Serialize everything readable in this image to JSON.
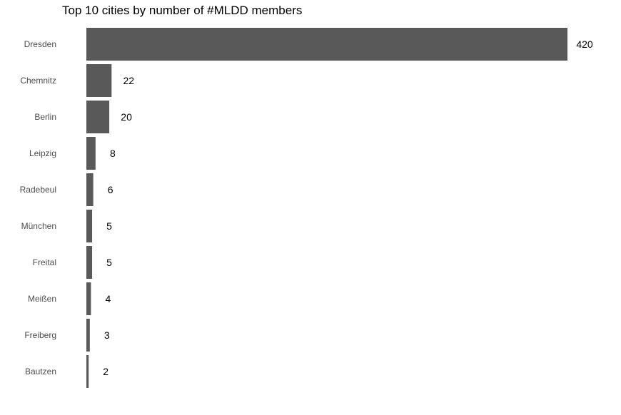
{
  "chart_data": {
    "type": "bar",
    "orientation": "horizontal",
    "title": "Top 10 cities by number of #MLDD members",
    "xlabel": "",
    "ylabel": "",
    "categories": [
      "Dresden",
      "Chemnitz",
      "Berlin",
      "Leipzig",
      "Radebeul",
      "München",
      "Freital",
      "Meißen",
      "Freiberg",
      "Bautzen"
    ],
    "values": [
      420,
      22,
      20,
      8,
      6,
      5,
      5,
      4,
      3,
      2
    ],
    "xlim": [
      0,
      420
    ],
    "bar_color": "#595959",
    "grid": false,
    "legend": "none",
    "data_labels": true
  }
}
